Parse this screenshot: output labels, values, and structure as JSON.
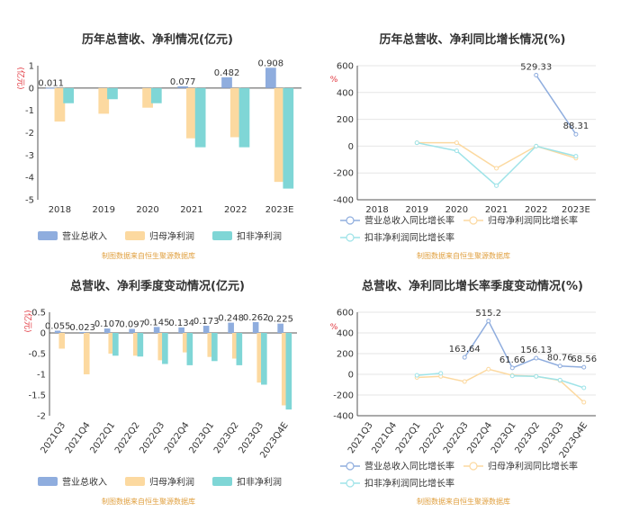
{
  "colors": {
    "revenue": "#8fadde",
    "net_profit": "#fcd9a0",
    "deducted_profit": "#7fd6d6",
    "revenue_line": "#8fadde",
    "net_line": "#fcd9a0",
    "deducted_line": "#9ee3e8",
    "axis_unit": "#e0323a",
    "grid": "#e6e6e6",
    "source": "#e0a040"
  },
  "chart_data": [
    {
      "id": "annual_amount",
      "type": "bar",
      "title": "历年总营收、净利情况(亿元)",
      "ylabel": "(亿元)",
      "ylim": [
        -5,
        1
      ],
      "yticks": [
        1,
        0,
        -1,
        -2,
        -3,
        -4,
        -5
      ],
      "categories": [
        "2018",
        "2019",
        "2020",
        "2021",
        "2022",
        "2023E"
      ],
      "series": [
        {
          "name": "营业总收入",
          "values": [
            0.011,
            0,
            0,
            0.077,
            0.482,
            0.908
          ]
        },
        {
          "name": "归母净利润",
          "values": [
            -1.5,
            -1.15,
            -0.88,
            -2.25,
            -2.2,
            -4.2
          ]
        },
        {
          "name": "扣非净利润",
          "values": [
            -0.68,
            -0.5,
            -0.68,
            -2.65,
            -2.65,
            -4.5
          ]
        }
      ],
      "data_labels": [
        "0.011",
        "",
        "",
        "0.077",
        "0.482",
        "0.908"
      ],
      "source": "制图数据来自恒生聚源数据库"
    },
    {
      "id": "annual_growth",
      "type": "line",
      "title": "历年总营收、净利同比增长情况(%)",
      "ylabel": "%",
      "ylim": [
        -400,
        600
      ],
      "yticks": [
        600,
        400,
        200,
        0,
        -200,
        -400
      ],
      "categories": [
        "2018",
        "2019",
        "2020",
        "2021",
        "2022",
        "2023E"
      ],
      "series": [
        {
          "name": "营业总收入同比增长率",
          "values": [
            null,
            null,
            null,
            null,
            529.33,
            88.31
          ]
        },
        {
          "name": "归母净利润同比增长率",
          "values": [
            null,
            25,
            25,
            -165,
            0,
            -90
          ]
        },
        {
          "name": "扣非净利润同比增长率",
          "values": [
            null,
            25,
            -35,
            -295,
            0,
            -75
          ]
        }
      ],
      "data_labels": [
        "",
        "",
        "",
        "",
        "529.33",
        "88.31"
      ],
      "source": "制图数据来自恒生聚源数据库"
    },
    {
      "id": "quarterly_amount",
      "type": "bar",
      "title": "总营收、净利季度变动情况(亿元)",
      "ylabel": "(亿元)",
      "ylim": [
        -2,
        0.5
      ],
      "yticks": [
        0.5,
        0,
        -0.5,
        -1,
        -1.5,
        -2
      ],
      "categories": [
        "2021Q3",
        "2021Q4",
        "2022Q1",
        "2022Q2",
        "2022Q3",
        "2022Q4",
        "2023Q1",
        "2023Q2",
        "2023Q3",
        "2023Q4E"
      ],
      "series": [
        {
          "name": "营业总收入",
          "values": [
            0.055,
            0.023,
            0.107,
            0.097,
            0.145,
            0.134,
            0.173,
            0.248,
            0.262,
            0.225
          ]
        },
        {
          "name": "归母净利润",
          "values": [
            -0.38,
            -1.0,
            -0.5,
            -0.55,
            -0.66,
            -0.47,
            -0.58,
            -0.62,
            -1.2,
            -1.75
          ]
        },
        {
          "name": "扣非净利润",
          "values": [
            0,
            0,
            -0.55,
            -0.57,
            -0.75,
            -0.78,
            -0.68,
            -0.78,
            -1.25,
            -1.85
          ]
        }
      ],
      "data_labels": [
        "0.055",
        "0.023",
        "0.107",
        "0.097",
        "0.145",
        "0.134",
        "0.173",
        "0.248",
        "0.262",
        "0.225"
      ],
      "source": "制图数据来自恒生聚源数据库"
    },
    {
      "id": "quarterly_growth",
      "type": "line",
      "title": "总营收、净利同比增长率季度变动情况(%)",
      "ylabel": "%",
      "ylim": [
        -400,
        600
      ],
      "yticks": [
        600,
        400,
        200,
        0,
        -200,
        -400
      ],
      "categories": [
        "2021Q3",
        "2021Q4",
        "2022Q1",
        "2022Q2",
        "2022Q3",
        "2022Q4",
        "2023Q1",
        "2023Q2",
        "2023Q3",
        "2023Q4E"
      ],
      "series": [
        {
          "name": "营业总收入同比增长率",
          "values": [
            null,
            null,
            null,
            null,
            163.64,
            515.2,
            61.66,
            156.13,
            80.76,
            68.56
          ]
        },
        {
          "name": "归母净利润同比增长率",
          "values": [
            null,
            null,
            -30,
            -20,
            -70,
            50,
            -10,
            -20,
            -60,
            -270
          ]
        },
        {
          "name": "扣非净利润同比增长率",
          "values": [
            null,
            null,
            -10,
            10,
            null,
            null,
            -15,
            -20,
            -55,
            -130
          ]
        }
      ],
      "data_labels": [
        "",
        "",
        "",
        "",
        "163.64",
        "515.2",
        "61.66",
        "156.13",
        "80.76",
        "68.56"
      ],
      "source": "制图数据来自恒生聚源数据库"
    }
  ]
}
